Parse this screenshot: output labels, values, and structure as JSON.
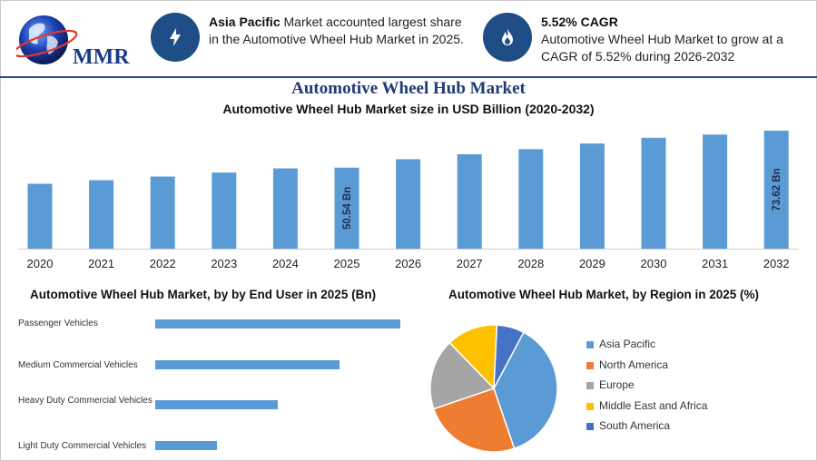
{
  "brand": {
    "logo_text": "MMR"
  },
  "highlights": [
    {
      "icon": "lightning-icon",
      "bold": "Asia Pacific",
      "text": " Market accounted largest share in the Automotive Wheel Hub Market in 2025."
    },
    {
      "icon": "flame-icon",
      "bold": "5.52% CAGR",
      "text": "Automotive Wheel Hub Market to grow at a CAGR of 5.52% during 2026-2032"
    }
  ],
  "main_title": "Automotive Wheel Hub Market",
  "chart_data": [
    {
      "type": "bar",
      "title": "Automotive Wheel Hub Market size in USD Billion (2020-2032)",
      "categories": [
        "2020",
        "2021",
        "2022",
        "2023",
        "2024",
        "2025",
        "2026",
        "2027",
        "2028",
        "2029",
        "2030",
        "2031",
        "2032"
      ],
      "values": [
        40.5,
        42.7,
        45.0,
        47.5,
        50.1,
        50.54,
        55.8,
        58.9,
        62.1,
        65.6,
        69.2,
        71.2,
        73.62
      ],
      "data_labels": {
        "2025": "50.54 Bn",
        "2032": "73.62 Bn"
      },
      "color": "#5b9bd5",
      "xlabel": "",
      "ylabel": ""
    },
    {
      "type": "bar",
      "orientation": "horizontal",
      "title": "Automotive Wheel Hub Market, by by End User in 2025 (Bn)",
      "categories": [
        "Passenger Vehicles",
        "Medium Commercial Vehicles",
        "Heavy Duty Commercial Vehicles",
        "Light Duty Commercial Vehicles"
      ],
      "values": [
        27.0,
        20.3,
        13.5,
        6.8
      ],
      "color": "#5b9bd5"
    },
    {
      "type": "pie",
      "title": "Automotive Wheel Hub Market, by Region in 2025 (%)",
      "labels": [
        "Asia Pacific",
        "North America",
        "Europe",
        "Middle East and Africa",
        "South America"
      ],
      "values": [
        37,
        25,
        18,
        13,
        7
      ],
      "colors": [
        "#5b9bd5",
        "#ed7d31",
        "#a5a5a5",
        "#ffc000",
        "#4472c4"
      ],
      "legend": "right"
    }
  ]
}
